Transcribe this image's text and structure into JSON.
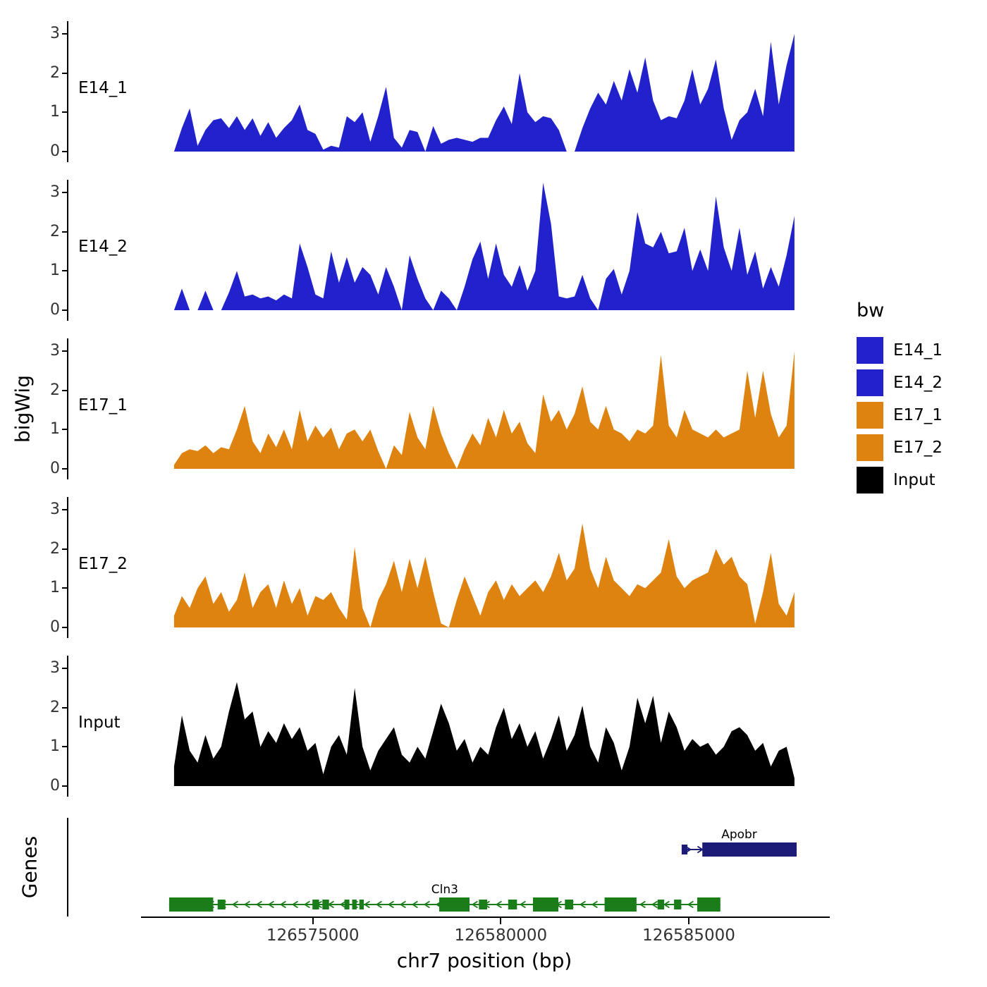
{
  "axis": {
    "y_ticks": [
      "3",
      "2",
      "1",
      "0"
    ]
  },
  "x_axis": {
    "ticks": [
      {
        "bp": 126575000,
        "label": "126575000"
      },
      {
        "bp": 126580000,
        "label": "126580000"
      },
      {
        "bp": 126585000,
        "label": "126585000"
      }
    ]
  },
  "legend": {
    "title": "bw",
    "items": [
      {
        "label": "E14_1",
        "color": "#2222cc"
      },
      {
        "label": "E14_2",
        "color": "#2222cc"
      },
      {
        "label": "E17_1",
        "color": "#de830f"
      },
      {
        "label": "E17_2",
        "color": "#de830f"
      },
      {
        "label": "Input",
        "color": "#000000"
      }
    ]
  },
  "chart_data": {
    "type": "area",
    "title": "",
    "xlabel": "chr7 position (bp)",
    "ylabel": "bigWig",
    "xlim": [
      126568500,
      126588750
    ],
    "ylim": [
      0,
      3.3
    ],
    "y_ticks": [
      0,
      1,
      2,
      3
    ],
    "x_range_bp": [
      126571310,
      126587810
    ],
    "facets": [
      "E14_1",
      "E14_2",
      "E17_1",
      "E17_2",
      "Input"
    ],
    "legend_position": "right",
    "grid": false,
    "series": [
      {
        "name": "E14_1",
        "color": "#2222cc",
        "values": [
          0,
          0.6,
          1.1,
          0.15,
          0.55,
          0.8,
          0.85,
          0.6,
          0.9,
          0.55,
          0.85,
          0.4,
          0.75,
          0.35,
          0.6,
          0.8,
          1.2,
          0.55,
          0.45,
          0.05,
          0.15,
          0.1,
          0.9,
          0.75,
          1,
          0.25,
          0.9,
          1.65,
          0.35,
          0.1,
          0.55,
          0.5,
          0,
          0.65,
          0.2,
          0.3,
          0.35,
          0.3,
          0.25,
          0.35,
          0.35,
          0.8,
          1.15,
          0.7,
          2,
          1,
          0.75,
          0.9,
          0.85,
          0.55,
          0,
          0,
          0.6,
          1.1,
          1.5,
          1.2,
          1.8,
          1.3,
          2.1,
          1.5,
          2.4,
          1.3,
          0.8,
          0.9,
          0.85,
          1.3,
          2.1,
          1.2,
          1.6,
          2.35,
          1.1,
          0.3,
          0.8,
          1,
          1.6,
          0.9,
          2.8,
          1.2,
          2.2,
          3
        ]
      },
      {
        "name": "E14_2",
        "color": "#2222cc",
        "values": [
          0,
          0.55,
          0,
          0,
          0.5,
          0,
          0,
          0.45,
          1,
          0.35,
          0.4,
          0.3,
          0.35,
          0.25,
          0.4,
          0.3,
          1.7,
          1.1,
          0.4,
          0.3,
          1.5,
          0.7,
          1.35,
          0.7,
          1.1,
          0.9,
          0.4,
          1.1,
          0.6,
          0,
          1.4,
          0.8,
          0.3,
          0,
          0.5,
          0.3,
          0,
          0.6,
          1.3,
          1.75,
          0.8,
          1.7,
          0.9,
          0.6,
          1.15,
          0.5,
          1,
          3.25,
          2.2,
          0.35,
          0.3,
          0.35,
          0.9,
          0.3,
          0,
          0.8,
          1.05,
          0.4,
          1,
          2.5,
          1.7,
          1.6,
          2,
          1.45,
          1.5,
          2.1,
          1,
          1.55,
          1,
          2.9,
          1.6,
          1,
          2.1,
          0.9,
          1.5,
          0.55,
          1.1,
          0.6,
          1.4,
          2.4
        ]
      },
      {
        "name": "E17_1",
        "color": "#de830f",
        "values": [
          0.1,
          0.4,
          0.5,
          0.45,
          0.6,
          0.4,
          0.55,
          0.5,
          1,
          1.6,
          0.7,
          0.4,
          0.9,
          0.55,
          1,
          0.5,
          1.5,
          0.7,
          1.1,
          0.8,
          1.05,
          0.5,
          0.9,
          1,
          0.7,
          1,
          0.45,
          0,
          0.6,
          0.35,
          1.45,
          0.8,
          0.5,
          1.6,
          0.9,
          0.4,
          0,
          0.5,
          0.9,
          0.6,
          1.3,
          0.8,
          1.5,
          0.9,
          1.2,
          0.65,
          0.4,
          1.9,
          1.2,
          1.5,
          1,
          1.4,
          2.1,
          1.2,
          1,
          1.6,
          1,
          0.9,
          0.7,
          1,
          0.9,
          1.1,
          2.9,
          1.1,
          0.8,
          1.5,
          1,
          0.9,
          0.8,
          1,
          0.8,
          0.9,
          1,
          2.5,
          1.3,
          2.5,
          1.4,
          0.8,
          1.1,
          3
        ]
      },
      {
        "name": "E17_2",
        "color": "#de830f",
        "values": [
          0.3,
          0.8,
          0.5,
          1,
          1.3,
          0.6,
          0.9,
          0.4,
          0.7,
          1.4,
          0.5,
          0.9,
          1.1,
          0.5,
          1.2,
          0.6,
          1,
          0.3,
          0.8,
          0.7,
          0.9,
          0.5,
          0.2,
          2.05,
          0.5,
          0,
          0.7,
          1.1,
          1.7,
          0.9,
          1.75,
          1,
          1.8,
          0.9,
          0.1,
          0,
          0.7,
          1.3,
          0.8,
          0.3,
          0.9,
          1.2,
          0.7,
          1.1,
          0.8,
          1,
          1.2,
          0.9,
          1.3,
          1.9,
          1.2,
          1.5,
          2.65,
          1.5,
          1,
          1.8,
          1.2,
          1,
          0.8,
          1.1,
          1,
          1.2,
          1.4,
          2.25,
          1.3,
          1,
          1.2,
          1.3,
          1.4,
          2,
          1.6,
          1.8,
          1.3,
          1.1,
          0.1,
          0.9,
          1.9,
          0.6,
          0.3,
          0.9
        ]
      },
      {
        "name": "Input",
        "color": "#000000",
        "values": [
          0.5,
          1.8,
          0.9,
          0.6,
          1.3,
          0.7,
          1,
          1.9,
          2.65,
          1.7,
          1.9,
          1,
          1.4,
          1.1,
          1.6,
          1.2,
          1.5,
          0.9,
          1.1,
          0.3,
          1,
          1.3,
          0.8,
          2.5,
          1,
          0.4,
          0.9,
          1.2,
          1.5,
          0.8,
          0.6,
          1,
          0.7,
          1.4,
          2.1,
          1.6,
          0.9,
          1.2,
          0.6,
          1,
          0.8,
          1.5,
          2,
          1.2,
          1.6,
          1,
          1.4,
          0.7,
          1.2,
          1.8,
          0.9,
          1.3,
          2.05,
          1,
          0.6,
          1.5,
          1.1,
          0.4,
          1,
          2.25,
          1.6,
          2.3,
          1.1,
          1.9,
          1.5,
          0.9,
          1.2,
          1,
          1.1,
          0.8,
          1,
          1.4,
          1.5,
          1.3,
          0.9,
          1.1,
          0.5,
          0.9,
          1,
          0.2
        ]
      }
    ]
  },
  "genes_panel": {
    "title": "Genes",
    "genes": [
      {
        "name": "Apobr",
        "strand": "+",
        "start_bp": 126584810,
        "end_bp": 126587870,
        "color": "#1c1c78",
        "thin_until": 0.18,
        "exons": [
          [
            0,
            0.05
          ],
          [
            0.18,
            0.82
          ]
        ]
      },
      {
        "name": "Cln3",
        "strand": "-",
        "start_bp": 126571180,
        "end_bp": 126585840,
        "color": "#1a7d1a",
        "exons": [
          [
            0,
            0.08
          ],
          [
            0.088,
            0.014
          ],
          [
            0.26,
            0.012
          ],
          [
            0.278,
            0.012
          ],
          [
            0.318,
            0.009
          ],
          [
            0.332,
            0.008
          ],
          [
            0.345,
            0.008
          ],
          [
            0.49,
            0.055
          ],
          [
            0.562,
            0.015
          ],
          [
            0.615,
            0.016
          ],
          [
            0.66,
            0.046
          ],
          [
            0.718,
            0.015
          ],
          [
            0.79,
            0.058
          ],
          [
            0.886,
            0.012
          ],
          [
            0.916,
            0.013
          ],
          [
            0.958,
            0.042
          ]
        ]
      }
    ]
  }
}
